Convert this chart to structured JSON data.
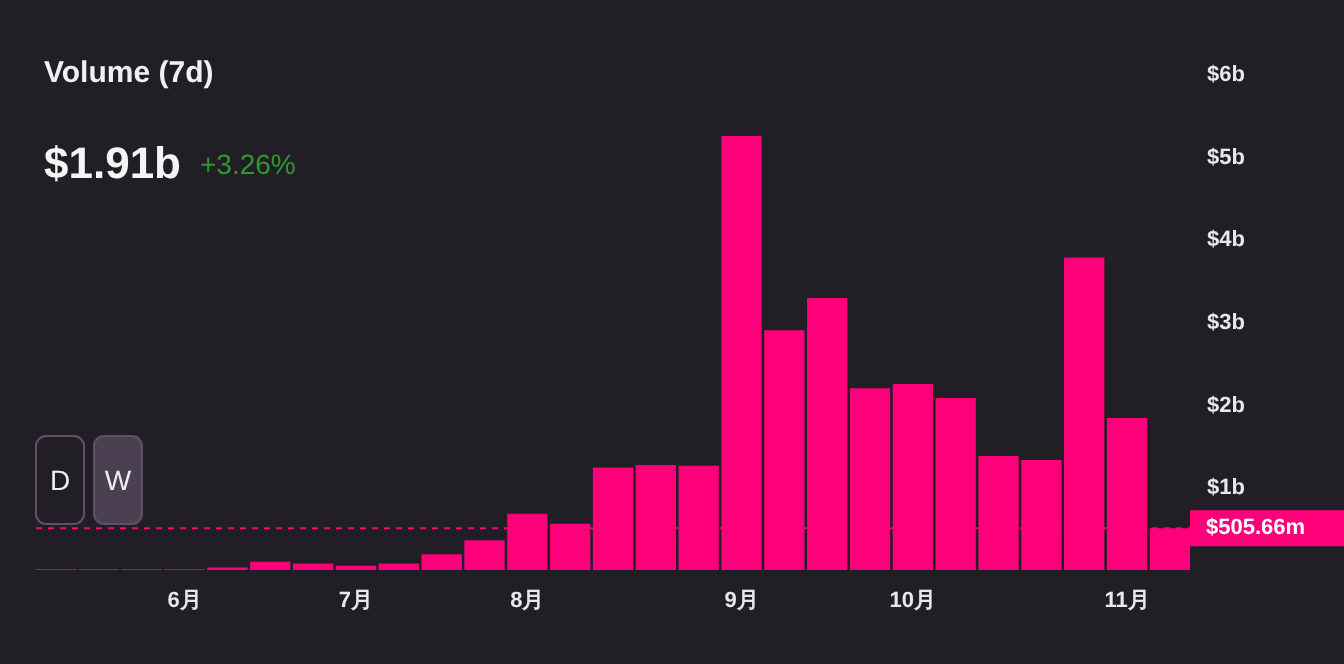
{
  "chart_data": {
    "type": "bar",
    "title": "Volume (7d)",
    "subtitle": "$1.91b",
    "annotations": [
      "+3.26%",
      "D",
      "W"
    ],
    "categories": [
      null,
      null,
      null,
      "6月",
      null,
      null,
      null,
      "7月",
      null,
      null,
      null,
      "8月",
      null,
      null,
      null,
      null,
      "9月",
      null,
      null,
      null,
      "10月",
      null,
      null,
      null,
      null,
      "11月",
      null
    ],
    "values": [
      0.01,
      0.01,
      0.01,
      0.01,
      0.03,
      0.1,
      0.08,
      0.05,
      0.08,
      0.19,
      0.36,
      0.68,
      0.56,
      1.24,
      1.27,
      1.26,
      5.25,
      2.9,
      3.29,
      2.2,
      2.25,
      2.08,
      1.38,
      1.33,
      3.78,
      1.84,
      0.50566
    ],
    "color": "#ff007a",
    "ylim": [
      0,
      6
    ],
    "yticks": [
      {
        "value": 1,
        "label": "$1b"
      },
      {
        "value": 2,
        "label": "$2b"
      },
      {
        "value": 3,
        "label": "$3b"
      },
      {
        "value": 4,
        "label": "$4b"
      },
      {
        "value": 5,
        "label": "$5b"
      },
      {
        "value": 6,
        "label": "$6b"
      }
    ],
    "ref_lines": [
      {
        "axis": "y",
        "value": 0.50566,
        "label": "$505.66m",
        "color": "#ff007a",
        "line_style": "dashed"
      }
    ]
  }
}
